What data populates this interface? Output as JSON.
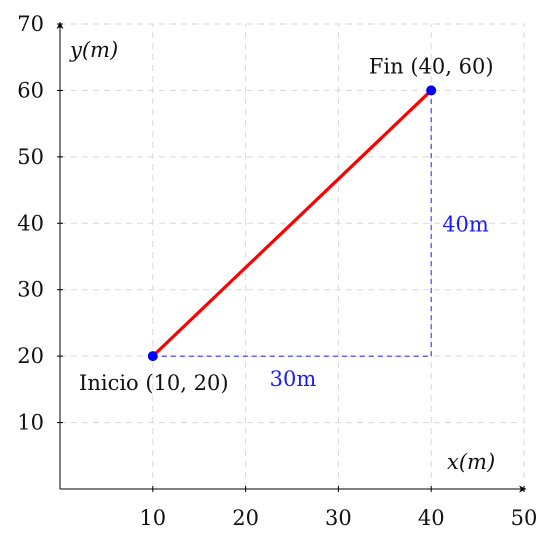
{
  "chart_data": {
    "type": "line",
    "title": "",
    "xlabel": "x(m)",
    "ylabel": "y(m)",
    "xlim": [
      0,
      50
    ],
    "ylim": [
      0,
      70
    ],
    "grid": true,
    "grid_style": "dashed light gray",
    "x_ticks": [
      "10",
      "20",
      "30",
      "40",
      "50"
    ],
    "y_ticks": [
      "10",
      "20",
      "30",
      "40",
      "50",
      "60",
      "70"
    ],
    "series": [
      {
        "points": [
          {
            "x": 10,
            "y": 20
          },
          {
            "x": 40,
            "y": 60
          }
        ],
        "color": "#ff0000"
      }
    ],
    "points": [
      {
        "x": 10,
        "y": 20,
        "label": "Inicio (10, 20)",
        "color": "#0000ff"
      },
      {
        "x": 40,
        "y": 60,
        "label": "Fin (40, 60)",
        "color": "#0000ff"
      }
    ],
    "guides": [
      {
        "from": [
          10,
          20
        ],
        "to": [
          40,
          20
        ],
        "label": "30m",
        "color": "#3333ff"
      },
      {
        "from": [
          40,
          20
        ],
        "to": [
          40,
          60
        ],
        "label": "40m",
        "color": "#3333ff"
      }
    ]
  }
}
